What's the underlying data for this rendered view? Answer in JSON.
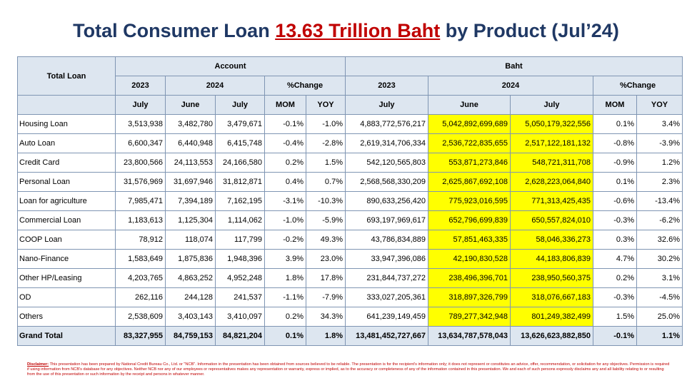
{
  "title": {
    "before": "Total Consumer Loan ",
    "highlight": "13.63 Trillion Baht",
    "after": " by Product (Jul’24)"
  },
  "table": {
    "header": {
      "total_loan": "Total Loan",
      "account": "Account",
      "baht": "Baht",
      "y2023": "2023",
      "y2024": "2024",
      "pct_change": "%Change",
      "july": "July",
      "june": "June",
      "mom": "MOM",
      "yoy": "YOY"
    },
    "rows": [
      {
        "name": "Housing Loan",
        "a23": "3,513,938",
        "a_jun": "3,482,780",
        "a_jul": "3,479,671",
        "a_mom": "-0.1%",
        "a_yoy": "-1.0%",
        "b23": "4,883,772,576,217",
        "b_jun": "5,042,892,699,689",
        "b_jul": "5,050,179,322,556",
        "b_mom": "0.1%",
        "b_yoy": "3.4%"
      },
      {
        "name": "Auto Loan",
        "a23": "6,600,347",
        "a_jun": "6,440,948",
        "a_jul": "6,415,748",
        "a_mom": "-0.4%",
        "a_yoy": "-2.8%",
        "b23": "2,619,314,706,334",
        "b_jun": "2,536,722,835,655",
        "b_jul": "2,517,122,181,132",
        "b_mom": "-0.8%",
        "b_yoy": "-3.9%"
      },
      {
        "name": "Credit Card",
        "a23": "23,800,566",
        "a_jun": "24,113,553",
        "a_jul": "24,166,580",
        "a_mom": "0.2%",
        "a_yoy": "1.5%",
        "b23": "542,120,565,803",
        "b_jun": "553,871,273,846",
        "b_jul": "548,721,311,708",
        "b_mom": "-0.9%",
        "b_yoy": "1.2%"
      },
      {
        "name": "Personal Loan",
        "a23": "31,576,969",
        "a_jun": "31,697,946",
        "a_jul": "31,812,871",
        "a_mom": "0.4%",
        "a_yoy": "0.7%",
        "b23": "2,568,568,330,209",
        "b_jun": "2,625,867,692,108",
        "b_jul": "2,628,223,064,840",
        "b_mom": "0.1%",
        "b_yoy": "2.3%"
      },
      {
        "name": "Loan for agriculture",
        "a23": "7,985,471",
        "a_jun": "7,394,189",
        "a_jul": "7,162,195",
        "a_mom": "-3.1%",
        "a_yoy": "-10.3%",
        "b23": "890,633,256,420",
        "b_jun": "775,923,016,595",
        "b_jul": "771,313,425,435",
        "b_mom": "-0.6%",
        "b_yoy": "-13.4%"
      },
      {
        "name": "Commercial Loan",
        "a23": "1,183,613",
        "a_jun": "1,125,304",
        "a_jul": "1,114,062",
        "a_mom": "-1.0%",
        "a_yoy": "-5.9%",
        "b23": "693,197,969,617",
        "b_jun": "652,796,699,839",
        "b_jul": "650,557,824,010",
        "b_mom": "-0.3%",
        "b_yoy": "-6.2%"
      },
      {
        "name": "COOP Loan",
        "a23": "78,912",
        "a_jun": "118,074",
        "a_jul": "117,799",
        "a_mom": "-0.2%",
        "a_yoy": "49.3%",
        "b23": "43,786,834,889",
        "b_jun": "57,851,463,335",
        "b_jul": "58,046,336,273",
        "b_mom": "0.3%",
        "b_yoy": "32.6%"
      },
      {
        "name": "Nano-Finance",
        "a23": "1,583,649",
        "a_jun": "1,875,836",
        "a_jul": "1,948,396",
        "a_mom": "3.9%",
        "a_yoy": "23.0%",
        "b23": "33,947,396,086",
        "b_jun": "42,190,830,528",
        "b_jul": "44,183,806,839",
        "b_mom": "4.7%",
        "b_yoy": "30.2%"
      },
      {
        "name": "Other HP/Leasing",
        "a23": "4,203,765",
        "a_jun": "4,863,252",
        "a_jul": "4,952,248",
        "a_mom": "1.8%",
        "a_yoy": "17.8%",
        "b23": "231,844,737,272",
        "b_jun": "238,496,396,701",
        "b_jul": "238,950,560,375",
        "b_mom": "0.2%",
        "b_yoy": "3.1%"
      },
      {
        "name": "OD",
        "a23": "262,116",
        "a_jun": "244,128",
        "a_jul": "241,537",
        "a_mom": "-1.1%",
        "a_yoy": "-7.9%",
        "b23": "333,027,205,361",
        "b_jun": "318,897,326,799",
        "b_jul": "318,076,667,183",
        "b_mom": "-0.3%",
        "b_yoy": "-4.5%"
      },
      {
        "name": "Others",
        "a23": "2,538,609",
        "a_jun": "3,403,143",
        "a_jul": "3,410,097",
        "a_mom": "0.2%",
        "a_yoy": "34.3%",
        "b23": "641,239,149,459",
        "b_jun": "789,277,342,948",
        "b_jul": "801,249,382,499",
        "b_mom": "1.5%",
        "b_yoy": "25.0%"
      }
    ],
    "grand_total": {
      "name": "Grand Total",
      "a23": "83,327,955",
      "a_jun": "84,759,153",
      "a_jul": "84,821,204",
      "a_mom": "0.1%",
      "a_yoy": "1.8%",
      "b23": "13,481,452,727,667",
      "b_jun": "13,634,787,578,043",
      "b_jul": "13,626,623,882,850",
      "b_mom": "-0.1%",
      "b_yoy": "1.1%"
    }
  },
  "disclaimer": {
    "label": "Disclaimer:",
    "text": "This presentation has been prepared by National Credit Bureau Co., Ltd. or \"NCB\". Information in the presentation has been obtained from sources believed to be reliable. The presentation is for the recipient's information only; it does not represent or constitutes an advice, offer, recommendation, or solicitation for any objectives. Permission is required if using information from NCB's database for any objectives. Neither NCB nor any of our employees or representatives makes any representation or warranty, express or implied, as to the accuracy or completeness of any of the information contained in this presentation. We and each of such persons expressly disclaims any and all liability relating to or resulting from the use of this presentation or such information by the receipt and persons in whatever manner."
  },
  "colors": {
    "title": "#1f3864",
    "highlight": "#c00000",
    "header_bg": "#dde6f0",
    "yellow": "#ffff00",
    "border": "#7f95b3"
  }
}
